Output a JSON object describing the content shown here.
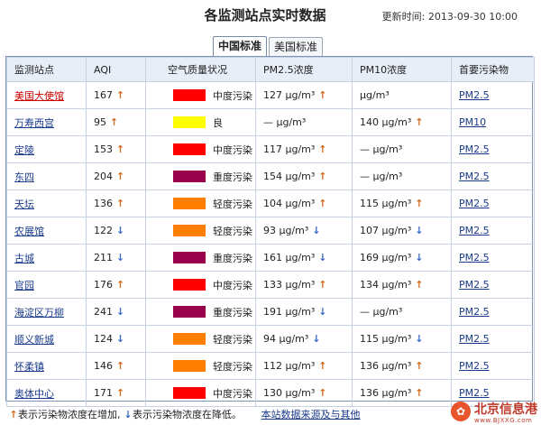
{
  "header": {
    "title": "各监测站点实时数据",
    "updated_label": "更新时间:",
    "updated_value": "2013-09-30 10:00"
  },
  "tabs": [
    {
      "label": "中国标准",
      "active": true
    },
    {
      "label": "美国标准",
      "active": false
    }
  ],
  "table": {
    "columns": [
      "监测站点",
      "AQI",
      "空气质量状况",
      "PM2.5浓度",
      "PM10浓度",
      "首要污染物"
    ],
    "unit": "μg/m³",
    "level_colors": {
      "良": "#ffff00",
      "轻度污染": "#ff7e00",
      "中度污染": "#ff0000",
      "重度污染": "#99004c"
    },
    "rows": [
      {
        "station": "美国大使馆",
        "aqi": "167",
        "aqi_trend": "up",
        "level": "中度污染",
        "color": "#ff0000",
        "pm25": "127",
        "pm25_trend": "up",
        "pm10": "",
        "pm10_trend": "",
        "pollutant": "PM2.5"
      },
      {
        "station": "万寿西宫",
        "aqi": "95",
        "aqi_trend": "up",
        "level": "良",
        "color": "#ffff00",
        "pm25": "—",
        "pm25_trend": "",
        "pm10": "140",
        "pm10_trend": "up",
        "pollutant": "PM10"
      },
      {
        "station": "定陵",
        "aqi": "153",
        "aqi_trend": "up",
        "level": "中度污染",
        "color": "#ff0000",
        "pm25": "117",
        "pm25_trend": "up",
        "pm10": "—",
        "pm10_trend": "",
        "pollutant": "PM2.5"
      },
      {
        "station": "东四",
        "aqi": "204",
        "aqi_trend": "up",
        "level": "重度污染",
        "color": "#99004c",
        "pm25": "154",
        "pm25_trend": "up",
        "pm10": "—",
        "pm10_trend": "",
        "pollutant": "PM2.5"
      },
      {
        "station": "天坛",
        "aqi": "136",
        "aqi_trend": "up",
        "level": "轻度污染",
        "color": "#ff7e00",
        "pm25": "104",
        "pm25_trend": "up",
        "pm10": "115",
        "pm10_trend": "up",
        "pollutant": "PM2.5"
      },
      {
        "station": "农展馆",
        "aqi": "122",
        "aqi_trend": "down",
        "level": "轻度污染",
        "color": "#ff7e00",
        "pm25": "93",
        "pm25_trend": "down",
        "pm10": "107",
        "pm10_trend": "down",
        "pollutant": "PM2.5"
      },
      {
        "station": "古城",
        "aqi": "211",
        "aqi_trend": "down",
        "level": "重度污染",
        "color": "#99004c",
        "pm25": "161",
        "pm25_trend": "down",
        "pm10": "169",
        "pm10_trend": "down",
        "pollutant": "PM2.5"
      },
      {
        "station": "官园",
        "aqi": "176",
        "aqi_trend": "up",
        "level": "中度污染",
        "color": "#ff0000",
        "pm25": "133",
        "pm25_trend": "up",
        "pm10": "134",
        "pm10_trend": "up",
        "pollutant": "PM2.5"
      },
      {
        "station": "海淀区万柳",
        "aqi": "241",
        "aqi_trend": "down",
        "level": "重度污染",
        "color": "#99004c",
        "pm25": "191",
        "pm25_trend": "down",
        "pm10": "—",
        "pm10_trend": "",
        "pollutant": "PM2.5"
      },
      {
        "station": "顺义新城",
        "aqi": "124",
        "aqi_trend": "down",
        "level": "轻度污染",
        "color": "#ff7e00",
        "pm25": "94",
        "pm25_trend": "down",
        "pm10": "115",
        "pm10_trend": "down",
        "pollutant": "PM2.5"
      },
      {
        "station": "怀柔镇",
        "aqi": "146",
        "aqi_trend": "up",
        "level": "轻度污染",
        "color": "#ff7e00",
        "pm25": "112",
        "pm25_trend": "up",
        "pm10": "136",
        "pm10_trend": "up",
        "pollutant": "PM2.5"
      },
      {
        "station": "奥体中心",
        "aqi": "171",
        "aqi_trend": "up",
        "level": "中度污染",
        "color": "#ff0000",
        "pm25": "130",
        "pm25_trend": "up",
        "pm10": "136",
        "pm10_trend": "up",
        "pollutant": "PM2.5"
      }
    ]
  },
  "footer": {
    "legend_up": "表示污染物浓度在增加,",
    "legend_down": "表示污染物浓度在降低。",
    "source_link": "本站数据来源及与其他"
  },
  "watermark": {
    "name": "北京信息港",
    "url": "www.BJXXG.com"
  }
}
